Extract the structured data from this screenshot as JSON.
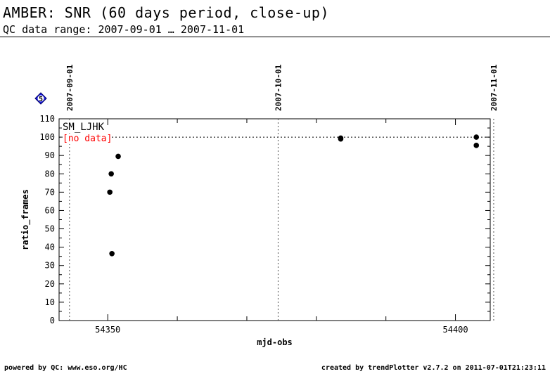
{
  "header": {
    "title": "AMBER: SNR (60 days period, close-up)",
    "subtitle": "QC data range: 2007-09-01 … 2007-11-01"
  },
  "badge": {
    "label": "5",
    "color": "#0000cc"
  },
  "footer": {
    "left": "powered by QC: www.eso.org/HC",
    "right": "created by trendPlotter v2.7.2 on 2011-07-01T21:23:11"
  },
  "chart_data": {
    "type": "scatter",
    "xlabel": "mjd-obs",
    "ylabel": "ratio_frames",
    "xlim": [
      54343,
      54405
    ],
    "ylim": [
      0,
      110
    ],
    "x_ticks": [
      54350,
      54400
    ],
    "x_tick_labels": [
      "54350",
      "54400"
    ],
    "y_ticks": [
      0,
      10,
      20,
      30,
      40,
      50,
      60,
      70,
      80,
      90,
      100,
      110
    ],
    "y_tick_labels": [
      "0",
      "10",
      "20",
      "30",
      "40",
      "50",
      "60",
      "70",
      "80",
      "90",
      "100",
      "110"
    ],
    "reference_line": 100,
    "date_markers": [
      {
        "x": 54344.5,
        "label": "2007-09-01"
      },
      {
        "x": 54374.5,
        "label": "2007-10-01"
      },
      {
        "x": 54405.5,
        "label": "2007-11-01"
      }
    ],
    "series": [
      {
        "name": "SM_LJHK",
        "note": "[no data]",
        "color": "#000000",
        "points": [
          {
            "x": 54350.3,
            "y": 70
          },
          {
            "x": 54350.5,
            "y": 80
          },
          {
            "x": 54350.6,
            "y": 36.5
          },
          {
            "x": 54351.5,
            "y": 89.5
          },
          {
            "x": 54383.5,
            "y": 99.5
          },
          {
            "x": 54383.5,
            "y": 99
          },
          {
            "x": 54403.0,
            "y": 100
          },
          {
            "x": 54403.0,
            "y": 95.5
          }
        ]
      }
    ]
  }
}
